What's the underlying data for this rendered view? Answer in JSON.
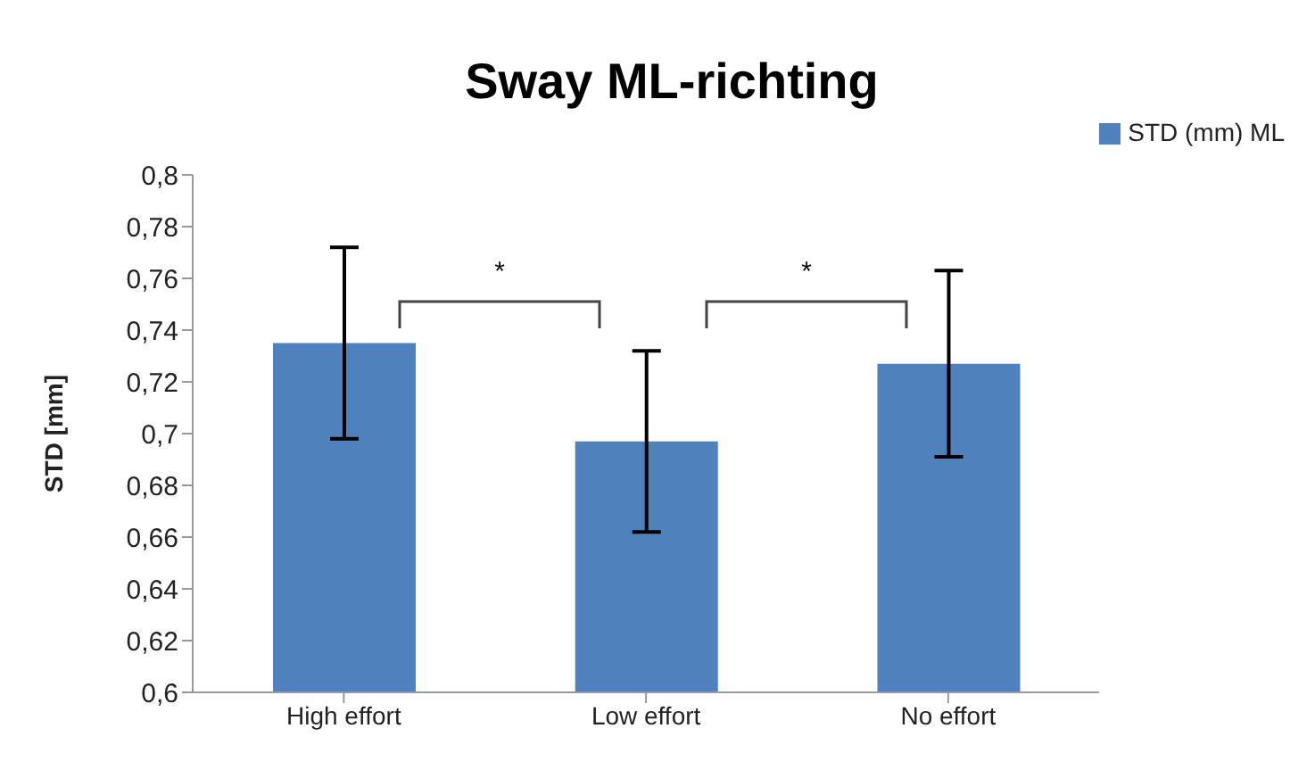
{
  "chart_data": {
    "type": "bar",
    "title": "Sway ML-richting",
    "ylabel": "STD [mm]",
    "categories": [
      "High effort",
      "Low effort",
      "No effort"
    ],
    "series": [
      {
        "name": "STD (mm) ML",
        "color": "#4f81bd",
        "values": [
          0.735,
          0.697,
          0.727
        ],
        "errors": [
          0.037,
          0.035,
          0.036
        ]
      }
    ],
    "ylim": [
      0.6,
      0.8
    ],
    "yticks": [
      {
        "value": 0.6,
        "label": "0,6"
      },
      {
        "value": 0.62,
        "label": "0,62"
      },
      {
        "value": 0.64,
        "label": "0,64"
      },
      {
        "value": 0.66,
        "label": "0,66"
      },
      {
        "value": 0.68,
        "label": "0,68"
      },
      {
        "value": 0.7,
        "label": "0,7"
      },
      {
        "value": 0.72,
        "label": "0,72"
      },
      {
        "value": 0.74,
        "label": "0,74"
      },
      {
        "value": 0.76,
        "label": "0,76"
      },
      {
        "value": 0.78,
        "label": "0,78"
      },
      {
        "value": 0.8,
        "label": "0,8"
      }
    ],
    "grid": false,
    "legend": "top right",
    "annotations": [
      "*",
      "*"
    ]
  }
}
